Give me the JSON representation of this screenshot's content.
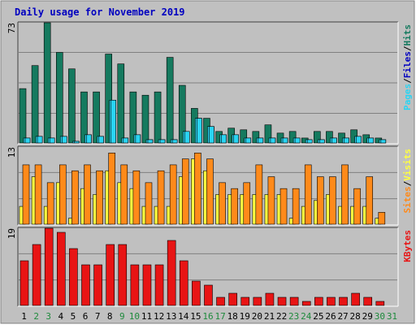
{
  "title": "Daily usage for November 2019",
  "colors": {
    "background": "#c0c0c0",
    "title": "#0000c0",
    "hits": "#157a5f",
    "files": "#2ad4f2",
    "pages": "#2ad4f2",
    "visits": "#ff8a1a",
    "sites": "#ffff40",
    "kbytes": "#e81414",
    "weekend_label": "#1e8a3c"
  },
  "chart_data": [
    {
      "type": "bar",
      "panel": "hits-files-pages",
      "y_max_label": "73",
      "ylim": [
        0,
        73
      ],
      "legend": [
        {
          "key": "pages",
          "text": "Pages",
          "color": "#2ad4f2"
        },
        {
          "key": "sep1",
          "text": "/",
          "color": "#000000"
        },
        {
          "key": "files",
          "text": "Files",
          "color": "#0000c0"
        },
        {
          "key": "sep2",
          "text": "/",
          "color": "#000000"
        },
        {
          "key": "hits",
          "text": "Hits",
          "color": "#157a5f"
        }
      ],
      "series": [
        {
          "name": "Hits",
          "color": "#157a5f",
          "values": [
            33,
            47,
            73,
            55,
            45,
            31,
            31,
            54,
            48,
            31,
            29,
            31,
            52,
            35,
            21,
            15,
            7,
            9,
            8,
            7,
            11,
            6,
            7,
            3,
            7,
            7,
            6,
            8,
            5,
            3
          ]
        },
        {
          "name": "Files",
          "color": "#2ad4f2",
          "values": [
            3,
            4,
            3,
            4,
            1,
            5,
            4,
            26,
            3,
            5,
            2,
            2,
            2,
            7,
            15,
            10,
            5,
            5,
            3,
            3,
            3,
            3,
            3,
            2,
            2,
            3,
            3,
            4,
            3,
            2
          ]
        },
        {
          "name": "Pages",
          "color": "#2ad4f2",
          "values": [
            3,
            4,
            3,
            4,
            1,
            5,
            4,
            26,
            3,
            5,
            2,
            2,
            2,
            7,
            15,
            10,
            5,
            5,
            3,
            3,
            3,
            3,
            3,
            2,
            2,
            3,
            3,
            4,
            3,
            2
          ]
        }
      ]
    },
    {
      "type": "bar",
      "panel": "visits-sites",
      "y_max_label": "13",
      "ylim": [
        0,
        13
      ],
      "legend": [
        {
          "key": "sites",
          "text": "Sites",
          "color": "#ff8a1a"
        },
        {
          "key": "sep1",
          "text": "/",
          "color": "#000000"
        },
        {
          "key": "visits",
          "text": "Visits",
          "color": "#ffff40"
        }
      ],
      "series": [
        {
          "name": "Visits",
          "color": "#ff8a1a",
          "values": [
            10,
            10,
            7,
            10,
            9,
            10,
            9,
            12,
            10,
            9,
            7,
            9,
            10,
            11,
            12,
            11,
            7,
            6,
            7,
            10,
            8,
            6,
            6,
            10,
            8,
            8,
            10,
            6,
            8,
            2
          ]
        },
        {
          "name": "Sites",
          "color": "#ffff40",
          "values": [
            3,
            8,
            3,
            7,
            1,
            6,
            5,
            9,
            7,
            6,
            3,
            3,
            3,
            8,
            11,
            9,
            5,
            5,
            5,
            5,
            5,
            5,
            1,
            3,
            4,
            5,
            3,
            3,
            3,
            1
          ]
        }
      ]
    },
    {
      "type": "bar",
      "panel": "kbytes",
      "y_max_label": "19",
      "ylim": [
        0,
        19
      ],
      "legend": [
        {
          "key": "kbytes",
          "text": "KBytes",
          "color": "#e81414"
        }
      ],
      "series": [
        {
          "name": "KBytes",
          "color": "#e81414",
          "values": [
            11,
            15,
            19,
            18,
            14,
            10,
            10,
            15,
            15,
            10,
            10,
            10,
            16,
            11,
            6,
            5,
            2,
            3,
            2,
            2,
            3,
            2,
            2,
            1,
            2,
            2,
            2,
            3,
            2,
            1
          ]
        }
      ]
    }
  ],
  "x_axis": {
    "labels": [
      "1",
      "2",
      "3",
      "4",
      "5",
      "6",
      "7",
      "8",
      "9",
      "10",
      "11",
      "12",
      "13",
      "14",
      "15",
      "16",
      "17",
      "18",
      "19",
      "20",
      "21",
      "22",
      "23",
      "24",
      "25",
      "26",
      "27",
      "28",
      "29",
      "30",
      "31"
    ],
    "weekend_days": [
      2,
      3,
      9,
      10,
      16,
      17,
      23,
      24,
      30,
      31
    ]
  }
}
